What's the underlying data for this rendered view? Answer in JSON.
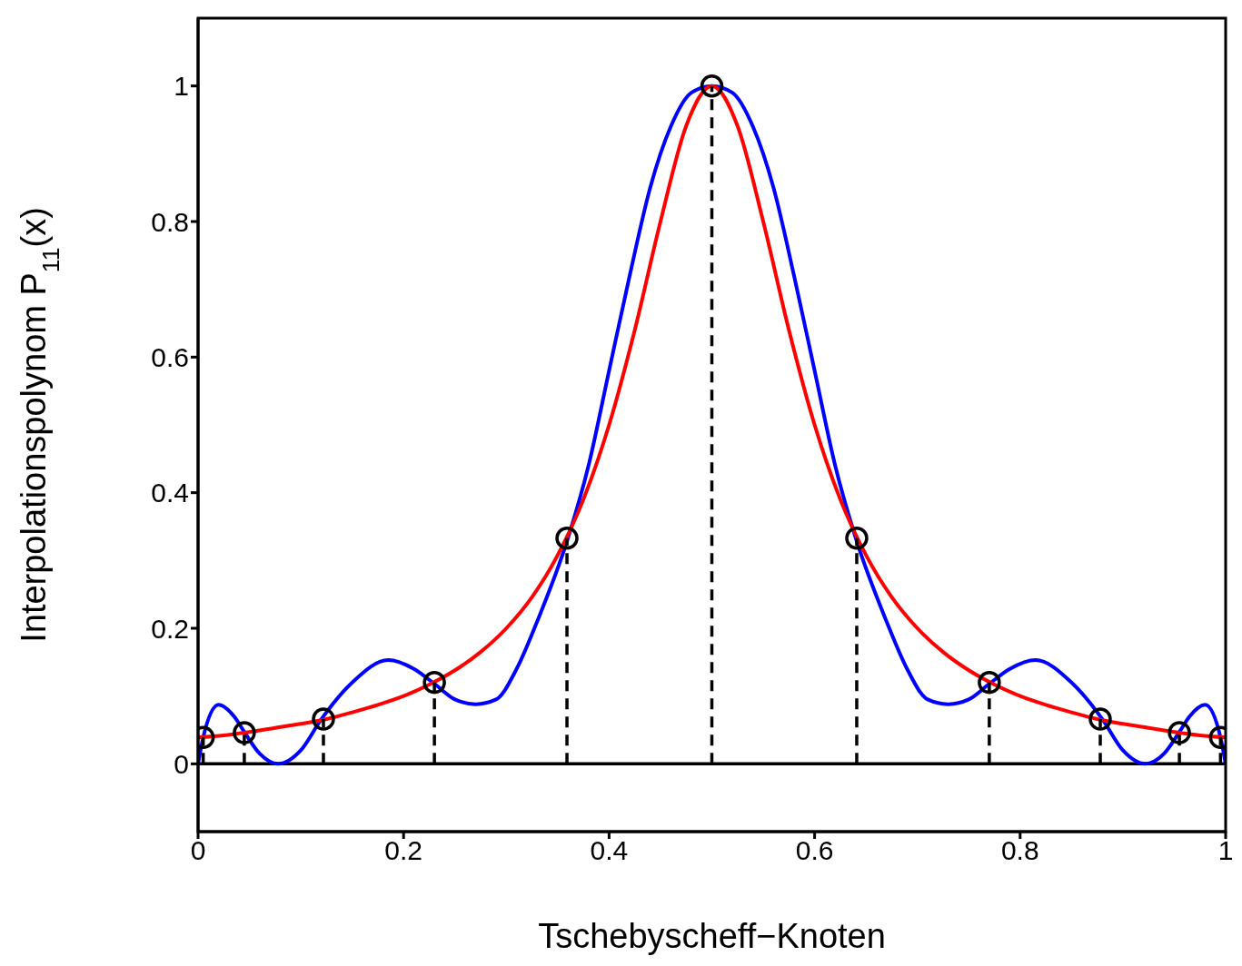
{
  "chart_data": {
    "type": "line",
    "xlabel": "Tschebyscheff−Knoten",
    "ylabel": "Interpolationspolynom P$_{11}$(x)",
    "xlim": [
      0,
      1
    ],
    "xticks": [
      0,
      0.2,
      0.4,
      0.6,
      0.8,
      1
    ],
    "ylim": [
      -0.1,
      1.1
    ],
    "yticks": [
      0,
      0.2,
      0.4,
      0.6,
      0.8,
      1
    ],
    "grid": false,
    "ref_lines": [
      {
        "axis": "y",
        "value": 0,
        "color": "#000000",
        "line_style": "solid"
      }
    ],
    "series": [
      {
        "color": "#0000ff",
        "marker": "none",
        "x": [
          0,
          0.005,
          0.02,
          0.035,
          0.045,
          0.06,
          0.078,
          0.1,
          0.12,
          0.15,
          0.185,
          0.21,
          0.23,
          0.25,
          0.27,
          0.29,
          0.31,
          0.33,
          0.36,
          0.38,
          0.4,
          0.42,
          0.44,
          0.46,
          0.48,
          0.5,
          0.52,
          0.54,
          0.56,
          0.58,
          0.6,
          0.62,
          0.64,
          0.67,
          0.69,
          0.71,
          0.73,
          0.75,
          0.77,
          0.79,
          0.815,
          0.85,
          0.88,
          0.9,
          0.922,
          0.94,
          0.955,
          0.965,
          0.98,
          0.995,
          1
        ],
        "values": [
          0,
          0.039,
          0.087,
          0.07,
          0.047,
          0.015,
          0,
          0.02,
          0.066,
          0.12,
          0.153,
          0.14,
          0.118,
          0.095,
          0.088,
          0.095,
          0.14,
          0.21,
          0.333,
          0.44,
          0.58,
          0.72,
          0.85,
          0.94,
          0.99,
          1,
          0.99,
          0.94,
          0.85,
          0.72,
          0.58,
          0.44,
          0.333,
          0.21,
          0.14,
          0.095,
          0.088,
          0.095,
          0.118,
          0.14,
          0.153,
          0.12,
          0.066,
          0.02,
          0,
          0.015,
          0.047,
          0.07,
          0.087,
          0.039,
          0
        ]
      },
      {
        "color": "#ff0000",
        "marker": "none",
        "x": [
          0,
          0.025,
          0.05,
          0.075,
          0.1,
          0.125,
          0.15,
          0.175,
          0.2,
          0.225,
          0.25,
          0.275,
          0.3,
          0.325,
          0.35,
          0.375,
          0.4,
          0.425,
          0.45,
          0.475,
          0.5,
          0.525,
          0.55,
          0.575,
          0.6,
          0.625,
          0.65,
          0.675,
          0.7,
          0.725,
          0.75,
          0.775,
          0.8,
          0.825,
          0.85,
          0.875,
          0.9,
          0.925,
          0.95,
          0.975,
          1
        ],
        "values": [
          0.039,
          0.042,
          0.047,
          0.053,
          0.059,
          0.066,
          0.076,
          0.087,
          0.1,
          0.117,
          0.138,
          0.165,
          0.2,
          0.246,
          0.308,
          0.39,
          0.5,
          0.64,
          0.8,
          0.941,
          1,
          0.941,
          0.8,
          0.64,
          0.5,
          0.39,
          0.308,
          0.246,
          0.2,
          0.165,
          0.138,
          0.117,
          0.1,
          0.087,
          0.076,
          0.066,
          0.059,
          0.053,
          0.047,
          0.042,
          0.039
        ]
      },
      {
        "type": "lollipop",
        "color": "#000000",
        "marker": "circle",
        "line_style": "dashed",
        "x": [
          0.005,
          0.045,
          0.122,
          0.23,
          0.359,
          0.5,
          0.641,
          0.77,
          0.878,
          0.955,
          0.995
        ],
        "values": [
          0.039,
          0.046,
          0.066,
          0.12,
          0.333,
          1,
          0.333,
          0.12,
          0.066,
          0.046,
          0.039
        ]
      }
    ]
  }
}
